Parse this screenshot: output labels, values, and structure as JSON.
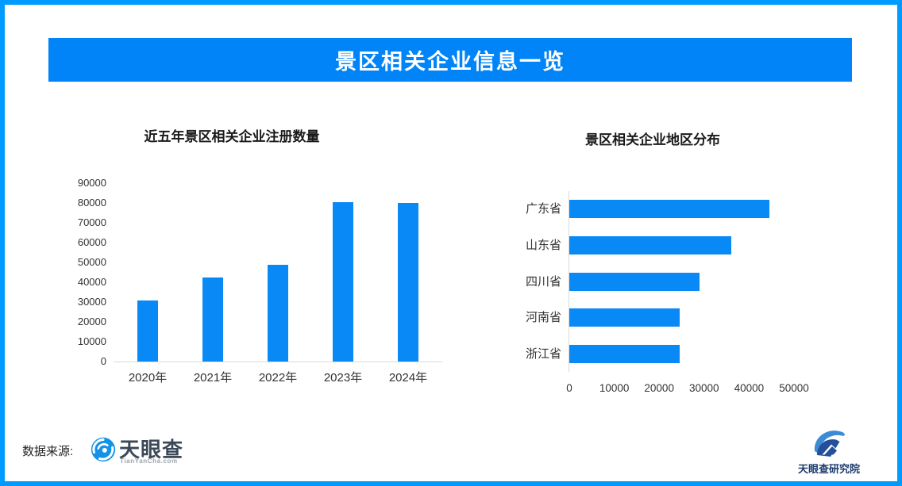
{
  "banner": {
    "title": "景区相关企业信息一览"
  },
  "colors": {
    "banner_bg": "#0084F8",
    "bar_fill": "#0989F5",
    "page_border": "#009BFF",
    "axis_line": "#D9D9D9"
  },
  "source": {
    "label": "数据来源:",
    "brand": "天眼查",
    "brand_sub": "TianYanCha.com"
  },
  "footer": {
    "institute": "天眼查研究院"
  },
  "chart_data": [
    {
      "type": "bar",
      "orientation": "vertical",
      "title": "近五年景区相关企业注册数量",
      "categories": [
        "2020年",
        "2021年",
        "2022年",
        "2023年",
        "2024年"
      ],
      "values": [
        31000,
        42500,
        49000,
        80500,
        80000
      ],
      "xlabel": "",
      "ylabel": "",
      "ylim": [
        0,
        90000
      ],
      "ytick_step": 10000,
      "grid": false,
      "legend_position": "none"
    },
    {
      "type": "bar",
      "orientation": "horizontal",
      "title": "景区相关企业地区分布",
      "categories": [
        "广东省",
        "山东省",
        "四川省",
        "河南省",
        "浙江省"
      ],
      "values": [
        44500,
        36000,
        29000,
        24500,
        24500
      ],
      "xlabel": "",
      "ylabel": "",
      "xlim": [
        0,
        50000
      ],
      "xtick_step": 10000,
      "grid": false,
      "legend_position": "none"
    }
  ]
}
